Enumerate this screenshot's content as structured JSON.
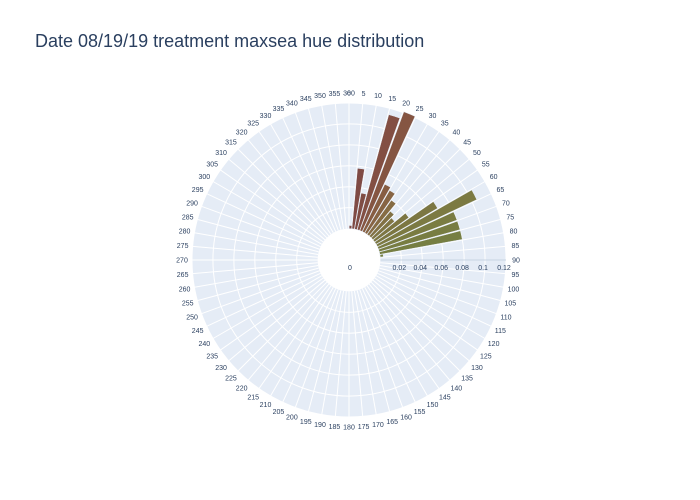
{
  "title": "Date 08/19/19 treatment maxsea hue distribution",
  "chart_data": {
    "type": "barpolar",
    "title": "Date 08/19/19 treatment maxsea hue distribution",
    "angular_axis": {
      "direction": "clockwise",
      "rotation": 90,
      "tick_labels": [
        "0",
        "5",
        "10",
        "15",
        "20",
        "25",
        "30",
        "35",
        "40",
        "45",
        "50",
        "55",
        "60",
        "65",
        "70",
        "75",
        "80",
        "85",
        "90",
        "95",
        "100",
        "105",
        "110",
        "115",
        "120",
        "125",
        "130",
        "135",
        "140",
        "145",
        "150",
        "155",
        "160",
        "165",
        "170",
        "175",
        "180",
        "185",
        "190",
        "195",
        "200",
        "205",
        "210",
        "215",
        "220",
        "225",
        "230",
        "235",
        "240",
        "245",
        "250",
        "255",
        "260",
        "265",
        "270",
        "275",
        "280",
        "285",
        "290",
        "295",
        "300",
        "305",
        "310",
        "315",
        "320",
        "325",
        "330",
        "335",
        "340",
        "345",
        "350",
        "355",
        "360"
      ]
    },
    "radial_axis": {
      "range": [
        0,
        0.12
      ],
      "tick_labels": [
        "0",
        "0.02",
        "0.04",
        "0.06",
        "0.08",
        "0.1",
        "0.12"
      ],
      "tick_values": [
        0,
        0.02,
        0.04,
        0.06,
        0.08,
        0.1,
        0.12
      ]
    },
    "hole_fraction": 0.2,
    "bars": [
      {
        "theta": 2.5,
        "r": 0.003,
        "color": "#7d4a45"
      },
      {
        "theta": 7.5,
        "r": 0.058,
        "color": "#7f4a44"
      },
      {
        "theta": 12.5,
        "r": 0.035,
        "color": "#7f4c44"
      },
      {
        "theta": 17.5,
        "r": 0.114,
        "color": "#834f43"
      },
      {
        "theta": 22.5,
        "r": 0.121,
        "color": "#855542"
      },
      {
        "theta": 27.5,
        "r": 0.05,
        "color": "#875d42"
      },
      {
        "theta": 32.5,
        "r": 0.047,
        "color": "#876443"
      },
      {
        "theta": 37.5,
        "r": 0.04,
        "color": "#866c43"
      },
      {
        "theta": 42.5,
        "r": 0.031,
        "color": "#827143"
      },
      {
        "theta": 47.5,
        "r": 0.027,
        "color": "#807543"
      },
      {
        "theta": 52.5,
        "r": 0.04,
        "color": "#7d7642"
      },
      {
        "theta": 57.5,
        "r": 0.068,
        "color": "#7c7742"
      },
      {
        "theta": 62.5,
        "r": 0.105,
        "color": "#7c7a42"
      },
      {
        "theta": 67.5,
        "r": 0.08,
        "color": "#7a7c42"
      },
      {
        "theta": 72.5,
        "r": 0.08,
        "color": "#787d42"
      },
      {
        "theta": 77.5,
        "r": 0.08,
        "color": "#767e42"
      },
      {
        "theta": 82.5,
        "r": 0.003,
        "color": "#747f42"
      }
    ],
    "colors": {
      "polar_bg": "#e5ecf6",
      "grid": "#ffffff",
      "text": "#2a3f5f"
    },
    "grid": true
  }
}
